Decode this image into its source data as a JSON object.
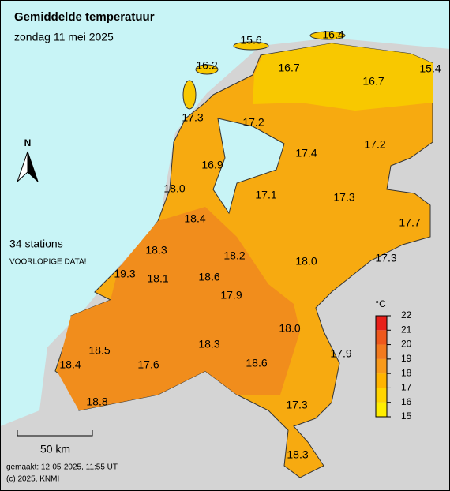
{
  "header": {
    "title": "Gemiddelde temperatuur",
    "subtitle": "zondag 11 mei 2025"
  },
  "station_count": "34 stations",
  "notice": "VOORLOPIGE DATA!",
  "north": "N",
  "scale_bar": "50 km",
  "footer": {
    "made": "gemaakt: 12-05-2025, 11:55 UT",
    "copyright": "(c) 2025, KNMI"
  },
  "legend": {
    "unit": "°C",
    "ticks": [
      15,
      16,
      17,
      18,
      19,
      20,
      21,
      22
    ],
    "colors": [
      "#ffee00",
      "#ffd400",
      "#ffb400",
      "#f89a1a",
      "#f27a1e",
      "#ee581c",
      "#e8201a"
    ]
  },
  "stations": [
    "15.6",
    "16.4",
    "16.2",
    "16.7",
    "16.7",
    "15.4",
    "17.3",
    "17.2",
    "17.4",
    "17.2",
    "16.9",
    "18.0",
    "17.1",
    "17.3",
    "17.7",
    "18.4",
    "18.3",
    "18.2",
    "18.0",
    "17.3",
    "19.3",
    "18.1",
    "18.6",
    "17.9",
    "18.0",
    "18.3",
    "18.5",
    "17.9",
    "18.4",
    "17.6",
    "18.6",
    "18.8",
    "17.3",
    "18.3"
  ]
}
